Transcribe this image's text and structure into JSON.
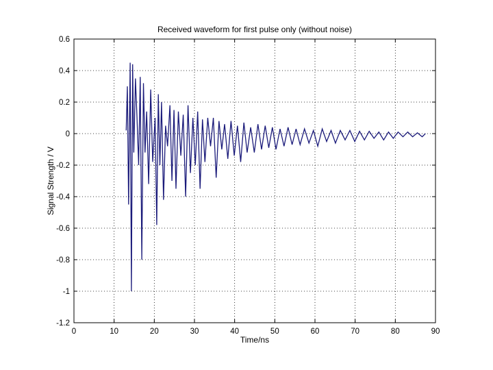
{
  "chart_data": {
    "type": "line",
    "title": "Received waveform for first pulse only (without noise)",
    "xlabel": "Time/ns",
    "ylabel": "Signal Strength / V",
    "xlim": [
      0,
      90
    ],
    "ylim": [
      -1.2,
      0.6
    ],
    "xticks": [
      "0",
      "10",
      "20",
      "30",
      "40",
      "50",
      "60",
      "70",
      "80",
      "90"
    ],
    "yticks": [
      "0.6",
      "0.4",
      "0.2",
      "0",
      "-0.2",
      "-0.4",
      "-0.6",
      "-0.8",
      "-1",
      "-1.2"
    ],
    "grid": true,
    "series": [
      {
        "color": "#1a1a7a",
        "x": [
          13.0,
          13.3,
          13.6,
          14.0,
          14.3,
          14.6,
          14.9,
          15.3,
          15.7,
          16.1,
          16.5,
          16.9,
          17.3,
          17.7,
          18.1,
          18.6,
          19.1,
          19.6,
          20.2,
          20.6,
          21.0,
          21.4,
          21.8,
          22.3,
          22.8,
          23.3,
          23.9,
          24.4,
          24.9,
          25.4,
          26.0,
          26.6,
          27.2,
          27.8,
          28.4,
          29.0,
          29.6,
          30.2,
          30.8,
          31.4,
          32.0,
          32.6,
          33.3,
          34.0,
          34.7,
          35.4,
          36.1,
          36.8,
          37.5,
          38.3,
          39.1,
          39.9,
          40.7,
          41.5,
          42.3,
          43.1,
          44.0,
          44.9,
          45.8,
          46.7,
          47.6,
          48.5,
          49.4,
          50.3,
          51.3,
          52.3,
          53.3,
          54.3,
          55.3,
          56.3,
          57.4,
          58.5,
          59.6,
          60.7,
          61.8,
          62.9,
          64.0,
          65.1,
          66.3,
          67.5,
          68.7,
          69.9,
          71.1,
          72.3,
          73.5,
          74.7,
          75.9,
          77.1,
          78.3,
          79.5,
          80.7,
          81.9,
          83.1,
          84.3,
          85.5,
          86.7,
          87.5
        ],
        "y": [
          0.02,
          0.3,
          -0.45,
          0.45,
          -1.0,
          0.44,
          -0.12,
          0.35,
          0.1,
          -0.2,
          0.36,
          -0.8,
          0.32,
          -0.12,
          0.14,
          -0.32,
          0.28,
          -0.18,
          0.1,
          -0.58,
          0.25,
          -0.2,
          0.2,
          -0.42,
          0.05,
          -0.08,
          0.18,
          -0.3,
          0.15,
          -0.35,
          0.14,
          -0.14,
          0.12,
          -0.4,
          0.18,
          -0.25,
          0.1,
          -0.2,
          0.14,
          -0.35,
          0.09,
          -0.18,
          0.1,
          -0.08,
          0.1,
          -0.28,
          0.08,
          -0.1,
          0.06,
          -0.16,
          0.08,
          -0.14,
          0.05,
          -0.18,
          0.07,
          -0.12,
          0.04,
          -0.12,
          0.06,
          -0.1,
          0.05,
          -0.09,
          0.04,
          -0.1,
          0.03,
          -0.08,
          0.04,
          -0.07,
          0.03,
          -0.07,
          0.03,
          -0.06,
          0.02,
          -0.08,
          0.03,
          -0.05,
          0.02,
          -0.06,
          0.02,
          -0.04,
          0.02,
          -0.05,
          0.015,
          -0.04,
          0.015,
          -0.03,
          0.01,
          -0.04,
          0.01,
          -0.03,
          0.01,
          -0.02,
          0.01,
          -0.02,
          0.005,
          -0.02,
          0.0
        ]
      }
    ]
  }
}
